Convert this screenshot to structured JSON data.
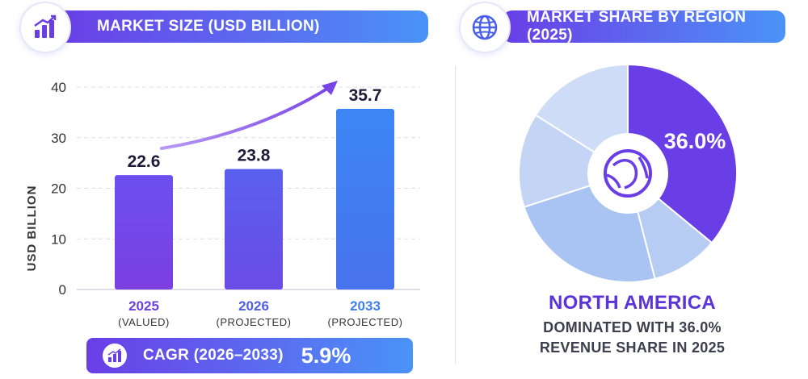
{
  "left_panel": {
    "title": "MARKET SIZE (USD BILLION)",
    "icon": "bar-growth-icon"
  },
  "right_panel": {
    "title": "MARKET SHARE BY REGION (2025)",
    "icon": "globe-icon"
  },
  "cagr": {
    "label": "CAGR (2026–2033)",
    "value": "5.9%",
    "icon": "bar-growth-icon"
  },
  "region": {
    "name": "NORTH AMERICA",
    "desc_line1": "DOMINATED WITH 36.0%",
    "desc_line2": "REVENUE SHARE IN 2025"
  },
  "colors": {
    "bar_2025": "#7a45e8",
    "bar_2026": "#6a57ea",
    "bar_2033": "#3f7ff0",
    "label_2025": "#6a3ee6",
    "label_2026": "#4f5de8",
    "label_2033": "#3f7ff0",
    "pie_highlight": "#6a3ee6"
  },
  "chart_data": [
    {
      "type": "bar",
      "title": "MARKET SIZE (USD BILLION)",
      "ylabel": "USD BILLION",
      "ylim": [
        0,
        40
      ],
      "yticks": [
        0,
        10,
        20,
        30,
        40
      ],
      "grid": true,
      "categories": [
        "2025",
        "2026",
        "2033"
      ],
      "category_sublabels": [
        "(VALUED)",
        "(PROJECTED)",
        "(PROJECTED)"
      ],
      "values": [
        22.6,
        23.8,
        35.7
      ],
      "value_labels": [
        "22.6",
        "23.8",
        "35.7"
      ]
    },
    {
      "type": "pie",
      "title": "MARKET SHARE BY REGION (2025)",
      "highlight_label": "36.0%",
      "slices": [
        {
          "value": 36.0,
          "color": "#6a3ee6"
        },
        {
          "value": 10.0,
          "color": "#b7ccf2"
        },
        {
          "value": 24.0,
          "color": "#a9c3f2"
        },
        {
          "value": 14.0,
          "color": "#c4d4f5"
        },
        {
          "value": 16.0,
          "color": "#cfdcf7"
        }
      ]
    }
  ]
}
